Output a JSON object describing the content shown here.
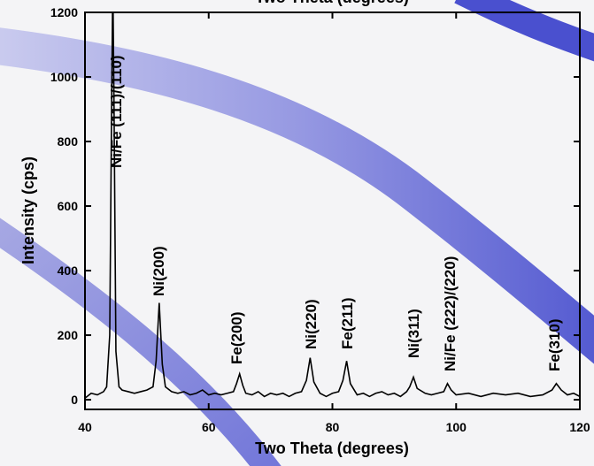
{
  "chart_data": {
    "type": "line",
    "xlabel": "Two Theta (degrees)",
    "ylabel": "Intensity (cps)",
    "x": [
      40,
      41,
      42,
      43,
      43.5,
      44,
      44.3,
      44.5,
      44.7,
      45,
      45.5,
      46,
      47,
      48,
      49,
      50,
      51,
      51.5,
      52,
      52.5,
      53,
      54,
      55,
      56,
      57,
      58,
      59,
      60,
      61,
      62,
      63,
      64,
      64.5,
      65,
      65.5,
      66,
      67,
      68,
      69,
      70,
      71,
      72,
      73,
      74,
      75,
      75.8,
      76.4,
      77,
      78,
      79,
      80,
      81,
      81.7,
      82.3,
      82.9,
      84,
      85,
      86,
      87,
      88,
      89,
      90,
      91,
      92,
      92.5,
      93.1,
      93.7,
      95,
      96,
      97,
      98,
      98.6,
      99.2,
      100,
      102,
      104,
      106,
      108,
      110,
      112,
      114,
      115.5,
      116.2,
      117,
      118,
      119,
      120
    ],
    "series": [
      {
        "color": "#000000",
        "values": [
          5,
          20,
          15,
          25,
          40,
          200,
          900,
          1300,
          900,
          150,
          40,
          30,
          25,
          20,
          25,
          30,
          40,
          120,
          300,
          110,
          40,
          25,
          20,
          25,
          15,
          20,
          30,
          15,
          20,
          15,
          20,
          25,
          50,
          80,
          45,
          20,
          15,
          25,
          10,
          20,
          15,
          20,
          10,
          20,
          25,
          60,
          130,
          55,
          20,
          10,
          20,
          25,
          60,
          120,
          50,
          15,
          20,
          10,
          20,
          25,
          15,
          20,
          10,
          25,
          40,
          70,
          35,
          20,
          15,
          20,
          25,
          50,
          30,
          15,
          20,
          10,
          20,
          15,
          20,
          10,
          15,
          30,
          50,
          30,
          15,
          20,
          10
        ]
      }
    ],
    "annotations": [
      "Ni/Fe (111)/(110)",
      "Ni(200)",
      "Fe(200)",
      "Ni(220)",
      "Fe(211)",
      "Ni(311)",
      "Ni/Fe  (222)/(220)",
      "Fe(310)"
    ],
    "xlim": [
      40,
      120
    ],
    "xticks": [
      40,
      60,
      80,
      100,
      120
    ],
    "ylim": [
      -30,
      1200
    ],
    "yticks": [
      0,
      200,
      400,
      600,
      800,
      1000,
      1200
    ]
  }
}
